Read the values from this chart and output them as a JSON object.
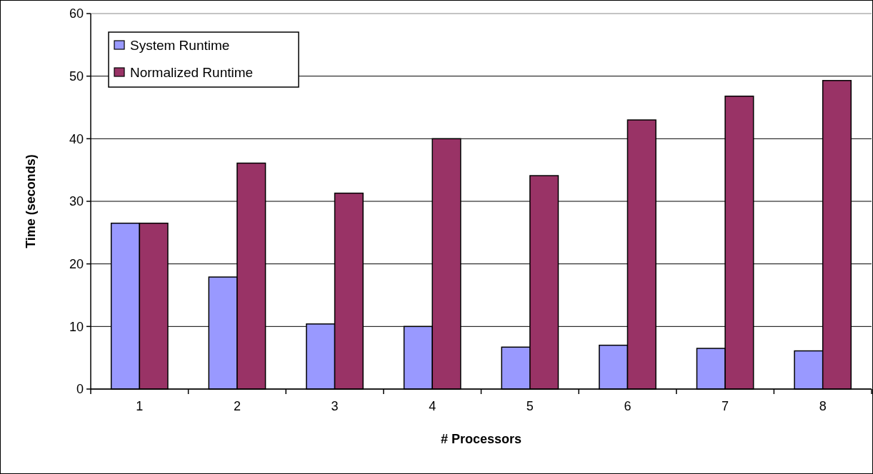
{
  "chart_data": {
    "type": "bar",
    "xlabel": "# Processors",
    "ylabel": "Time (seconds)",
    "categories": [
      "1",
      "2",
      "3",
      "4",
      "5",
      "6",
      "7",
      "8"
    ],
    "series": [
      {
        "name": "System Runtime",
        "color": "#9999ff",
        "values": [
          26.5,
          17.9,
          10.4,
          10.0,
          6.7,
          7.0,
          6.5,
          6.1
        ]
      },
      {
        "name": "Normalized Runtime",
        "color": "#993366",
        "values": [
          26.5,
          36.1,
          31.3,
          40.0,
          34.1,
          43.0,
          46.8,
          49.3
        ]
      }
    ],
    "ylim": [
      0,
      60
    ],
    "yticks": [
      0,
      10,
      20,
      30,
      40,
      50,
      60
    ],
    "grid": "y",
    "legend": "top left"
  }
}
